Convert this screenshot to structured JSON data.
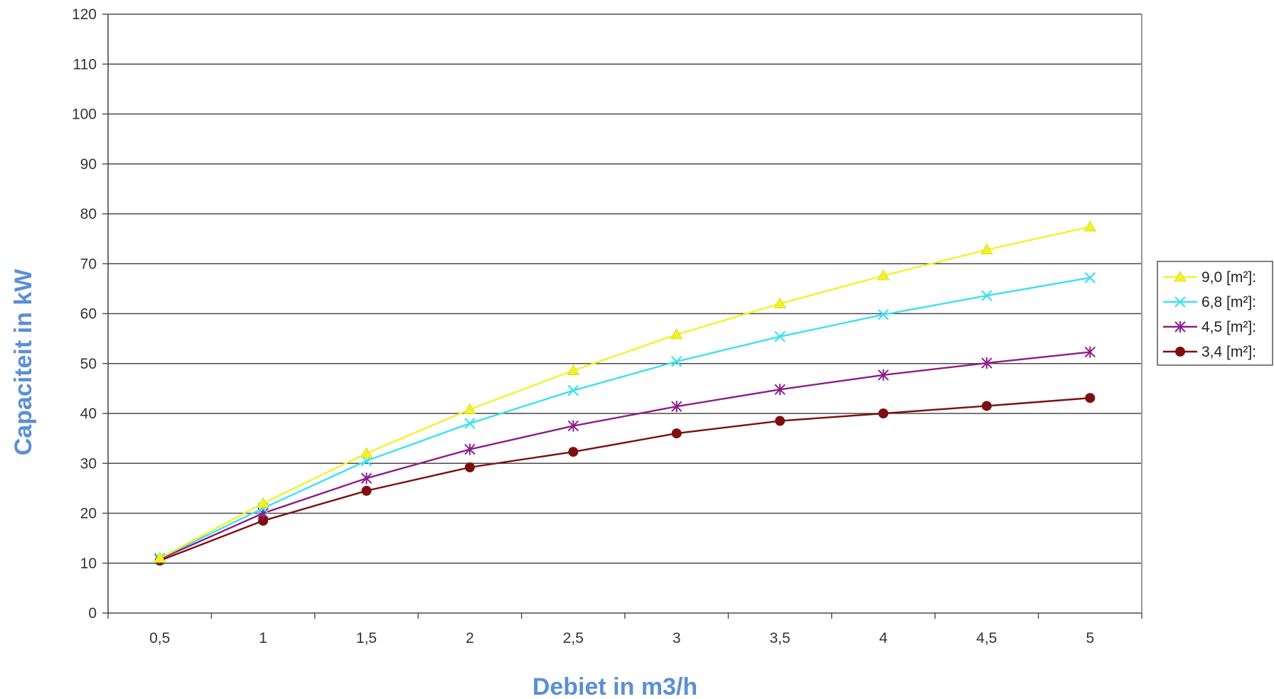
{
  "chart_data": {
    "type": "line",
    "xlabel": "Debiet in m3/h",
    "ylabel": "Capaciteit in kW",
    "x": [
      0.5,
      1,
      1.5,
      2,
      2.5,
      3,
      3.5,
      4,
      4.5,
      5
    ],
    "x_tick_labels": [
      "0,5",
      "1",
      "1,5",
      "2",
      "2,5",
      "3",
      "3,5",
      "4",
      "4,5",
      "5"
    ],
    "ylim": [
      0,
      120
    ],
    "y_ticks": [
      0,
      10,
      20,
      30,
      40,
      50,
      60,
      70,
      80,
      90,
      100,
      110,
      120
    ],
    "grid": true,
    "legend_position": "right",
    "series": [
      {
        "name": "9,0 [m²]:",
        "color": "#f2f22a",
        "marker": "triangle",
        "values": [
          11,
          22,
          32,
          40.8,
          48.6,
          55.8,
          62,
          67.6,
          72.8,
          77.4
        ]
      },
      {
        "name": "6,8 [m²]:",
        "color": "#3ee0f0",
        "marker": "x",
        "values": [
          11,
          21,
          30.5,
          38,
          44.6,
          50.4,
          55.4,
          59.8,
          63.6,
          67.2
        ]
      },
      {
        "name": "4,5 [m²]:",
        "color": "#8b1e8b",
        "marker": "star",
        "values": [
          10.8,
          20,
          27,
          32.8,
          37.5,
          41.4,
          44.8,
          47.7,
          50.1,
          52.3
        ]
      },
      {
        "name": "3,4 [m²]:",
        "color": "#7d0f0f",
        "marker": "circle",
        "values": [
          10.5,
          18.5,
          24.5,
          29.2,
          32.3,
          36,
          38.5,
          40,
          41.5,
          43.1
        ]
      }
    ]
  }
}
